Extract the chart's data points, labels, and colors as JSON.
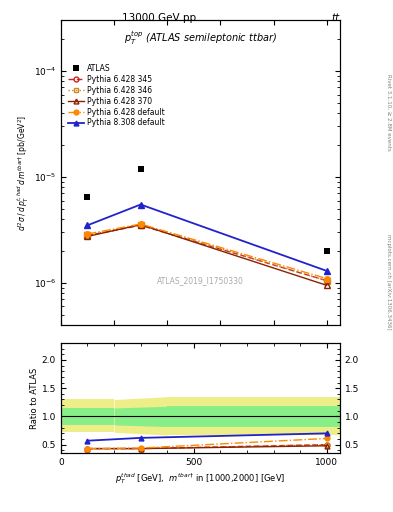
{
  "title_top": "13000 GeV pp",
  "title_right": "tt",
  "plot_title": "$p_T^{top}$ (ATLAS semileptonic ttbar)",
  "watermark": "ATLAS_2019_I1750330",
  "rivet_label": "Rivet 3.1.10, ≥ 2.8M events",
  "mcplots_label": "mcplots.cern.ch [arXiv:1306.3436]",
  "ylabel_main": "$d^2\\sigma\\,/\\,d\\,p_T^{t,had}\\,d\\,m^{tbar†}$ [pb/GeV$^2$]",
  "ylabel_ratio": "Ratio to ATLAS",
  "xlabel": "$p_T^{thad}$ [GeV],  $m^{tbar†}$ in [1000,2000] [GeV]",
  "xlim": [
    0,
    1050
  ],
  "ylim_main_lo": 4e-07,
  "ylim_main_hi": 0.0003,
  "ylim_ratio_lo": 0.35,
  "ylim_ratio_hi": 2.3,
  "xdata": [
    100,
    300,
    1000
  ],
  "atlas_data": [
    6.5e-06,
    1.2e-05,
    2e-06
  ],
  "pythia6_345_data": [
    2.8e-06,
    3.5e-06,
    1.05e-06
  ],
  "pythia6_346_data": [
    2.85e-06,
    3.55e-06,
    1.05e-06
  ],
  "pythia6_370_data": [
    2.75e-06,
    3.55e-06,
    9.5e-07
  ],
  "pythia6_default_data": [
    2.9e-06,
    3.6e-06,
    1.1e-06
  ],
  "pythia8_default_data": [
    3.5e-06,
    5.5e-06,
    1.3e-06
  ],
  "ratio_pythia6_345": [
    0.43,
    0.43,
    0.5
  ],
  "ratio_pythia6_346": [
    0.43,
    0.43,
    0.5
  ],
  "ratio_pythia6_370": [
    0.43,
    0.43,
    0.48
  ],
  "ratio_pythia6_default": [
    0.43,
    0.44,
    0.61
  ],
  "ratio_pythia8_default": [
    0.57,
    0.62,
    0.7
  ],
  "color_atlas": "#000000",
  "color_p6_345": "#cc2222",
  "color_p6_346": "#cc8822",
  "color_p6_370": "#882200",
  "color_p6_default": "#ff8800",
  "color_p8_default": "#2222cc",
  "color_yellow": "#eeee88",
  "color_green": "#88ee88"
}
